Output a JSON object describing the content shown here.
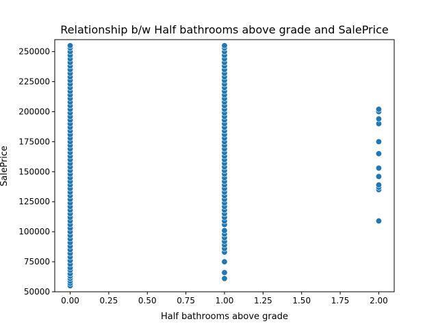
{
  "chart_data": {
    "type": "scatter",
    "title": "Relationship b/w Half bathrooms above grade and SalePrice",
    "xlabel": "Half bathrooms above grade",
    "ylabel": "SalePrice",
    "xlim": [
      -0.1,
      2.1
    ],
    "ylim": [
      50000,
      260000
    ],
    "xticks": [
      0.0,
      0.25,
      0.5,
      0.75,
      1.0,
      1.25,
      1.5,
      1.75,
      2.0
    ],
    "xtick_labels": [
      "0.00",
      "0.25",
      "0.50",
      "0.75",
      "1.00",
      "1.25",
      "1.50",
      "1.75",
      "2.00"
    ],
    "yticks": [
      50000,
      75000,
      100000,
      125000,
      150000,
      175000,
      200000,
      225000,
      250000
    ],
    "ytick_labels": [
      "50000",
      "75000",
      "100000",
      "125000",
      "150000",
      "175000",
      "200000",
      "225000",
      "250000"
    ],
    "grid": false,
    "marker_color": "#1f77b4",
    "marker_edge_color": "#ffffff",
    "points": [
      {
        "x": 0,
        "y": 55000
      },
      {
        "x": 0,
        "y": 57000
      },
      {
        "x": 0,
        "y": 59000
      },
      {
        "x": 0,
        "y": 61000
      },
      {
        "x": 0,
        "y": 63000
      },
      {
        "x": 0,
        "y": 65000
      },
      {
        "x": 0,
        "y": 68000
      },
      {
        "x": 0,
        "y": 70000
      },
      {
        "x": 0,
        "y": 73000
      },
      {
        "x": 0,
        "y": 76000
      },
      {
        "x": 0,
        "y": 79000
      },
      {
        "x": 0,
        "y": 82000
      },
      {
        "x": 0,
        "y": 85000
      },
      {
        "x": 0,
        "y": 88000
      },
      {
        "x": 0,
        "y": 91000
      },
      {
        "x": 0,
        "y": 94000
      },
      {
        "x": 0,
        "y": 97000
      },
      {
        "x": 0,
        "y": 100000
      },
      {
        "x": 0,
        "y": 103000
      },
      {
        "x": 0,
        "y": 106000
      },
      {
        "x": 0,
        "y": 109000
      },
      {
        "x": 0,
        "y": 112000
      },
      {
        "x": 0,
        "y": 115000
      },
      {
        "x": 0,
        "y": 118000
      },
      {
        "x": 0,
        "y": 121000
      },
      {
        "x": 0,
        "y": 124000
      },
      {
        "x": 0,
        "y": 127000
      },
      {
        "x": 0,
        "y": 130000
      },
      {
        "x": 0,
        "y": 133000
      },
      {
        "x": 0,
        "y": 136000
      },
      {
        "x": 0,
        "y": 139000
      },
      {
        "x": 0,
        "y": 142000
      },
      {
        "x": 0,
        "y": 145000
      },
      {
        "x": 0,
        "y": 148000
      },
      {
        "x": 0,
        "y": 151000
      },
      {
        "x": 0,
        "y": 154000
      },
      {
        "x": 0,
        "y": 157000
      },
      {
        "x": 0,
        "y": 160000
      },
      {
        "x": 0,
        "y": 163000
      },
      {
        "x": 0,
        "y": 166000
      },
      {
        "x": 0,
        "y": 169000
      },
      {
        "x": 0,
        "y": 172000
      },
      {
        "x": 0,
        "y": 175000
      },
      {
        "x": 0,
        "y": 178000
      },
      {
        "x": 0,
        "y": 181000
      },
      {
        "x": 0,
        "y": 184000
      },
      {
        "x": 0,
        "y": 187000
      },
      {
        "x": 0,
        "y": 190000
      },
      {
        "x": 0,
        "y": 193000
      },
      {
        "x": 0,
        "y": 196000
      },
      {
        "x": 0,
        "y": 199000
      },
      {
        "x": 0,
        "y": 202000
      },
      {
        "x": 0,
        "y": 205000
      },
      {
        "x": 0,
        "y": 208000
      },
      {
        "x": 0,
        "y": 211000
      },
      {
        "x": 0,
        "y": 214000
      },
      {
        "x": 0,
        "y": 217000
      },
      {
        "x": 0,
        "y": 220000
      },
      {
        "x": 0,
        "y": 223000
      },
      {
        "x": 0,
        "y": 226000
      },
      {
        "x": 0,
        "y": 229000
      },
      {
        "x": 0,
        "y": 232000
      },
      {
        "x": 0,
        "y": 235000
      },
      {
        "x": 0,
        "y": 238000
      },
      {
        "x": 0,
        "y": 241000
      },
      {
        "x": 0,
        "y": 244000
      },
      {
        "x": 0,
        "y": 247000
      },
      {
        "x": 0,
        "y": 250000
      },
      {
        "x": 0,
        "y": 253000
      },
      {
        "x": 0,
        "y": 255000
      },
      {
        "x": 1,
        "y": 61000
      },
      {
        "x": 1,
        "y": 66000
      },
      {
        "x": 1,
        "y": 75000
      },
      {
        "x": 1,
        "y": 83000
      },
      {
        "x": 1,
        "y": 86000
      },
      {
        "x": 1,
        "y": 89000
      },
      {
        "x": 1,
        "y": 92000
      },
      {
        "x": 1,
        "y": 95000
      },
      {
        "x": 1,
        "y": 98000
      },
      {
        "x": 1,
        "y": 101000
      },
      {
        "x": 1,
        "y": 106000
      },
      {
        "x": 1,
        "y": 109000
      },
      {
        "x": 1,
        "y": 112000
      },
      {
        "x": 1,
        "y": 115000
      },
      {
        "x": 1,
        "y": 118000
      },
      {
        "x": 1,
        "y": 121000
      },
      {
        "x": 1,
        "y": 124000
      },
      {
        "x": 1,
        "y": 127000
      },
      {
        "x": 1,
        "y": 130000
      },
      {
        "x": 1,
        "y": 133000
      },
      {
        "x": 1,
        "y": 136000
      },
      {
        "x": 1,
        "y": 139000
      },
      {
        "x": 1,
        "y": 142000
      },
      {
        "x": 1,
        "y": 145000
      },
      {
        "x": 1,
        "y": 148000
      },
      {
        "x": 1,
        "y": 151000
      },
      {
        "x": 1,
        "y": 154000
      },
      {
        "x": 1,
        "y": 157000
      },
      {
        "x": 1,
        "y": 160000
      },
      {
        "x": 1,
        "y": 163000
      },
      {
        "x": 1,
        "y": 166000
      },
      {
        "x": 1,
        "y": 169000
      },
      {
        "x": 1,
        "y": 172000
      },
      {
        "x": 1,
        "y": 175000
      },
      {
        "x": 1,
        "y": 178000
      },
      {
        "x": 1,
        "y": 181000
      },
      {
        "x": 1,
        "y": 184000
      },
      {
        "x": 1,
        "y": 187000
      },
      {
        "x": 1,
        "y": 190000
      },
      {
        "x": 1,
        "y": 193000
      },
      {
        "x": 1,
        "y": 196000
      },
      {
        "x": 1,
        "y": 199000
      },
      {
        "x": 1,
        "y": 202000
      },
      {
        "x": 1,
        "y": 205000
      },
      {
        "x": 1,
        "y": 208000
      },
      {
        "x": 1,
        "y": 211000
      },
      {
        "x": 1,
        "y": 214000
      },
      {
        "x": 1,
        "y": 217000
      },
      {
        "x": 1,
        "y": 220000
      },
      {
        "x": 1,
        "y": 223000
      },
      {
        "x": 1,
        "y": 226000
      },
      {
        "x": 1,
        "y": 229000
      },
      {
        "x": 1,
        "y": 232000
      },
      {
        "x": 1,
        "y": 235000
      },
      {
        "x": 1,
        "y": 238000
      },
      {
        "x": 1,
        "y": 241000
      },
      {
        "x": 1,
        "y": 244000
      },
      {
        "x": 1,
        "y": 247000
      },
      {
        "x": 1,
        "y": 250000
      },
      {
        "x": 1,
        "y": 253000
      },
      {
        "x": 1,
        "y": 255000
      },
      {
        "x": 2,
        "y": 109000
      },
      {
        "x": 2,
        "y": 135000
      },
      {
        "x": 2,
        "y": 137000
      },
      {
        "x": 2,
        "y": 139000
      },
      {
        "x": 2,
        "y": 146000
      },
      {
        "x": 2,
        "y": 153000
      },
      {
        "x": 2,
        "y": 165000
      },
      {
        "x": 2,
        "y": 175000
      },
      {
        "x": 2,
        "y": 190000
      },
      {
        "x": 2,
        "y": 194000
      },
      {
        "x": 2,
        "y": 200000
      },
      {
        "x": 2,
        "y": 202000
      }
    ]
  }
}
